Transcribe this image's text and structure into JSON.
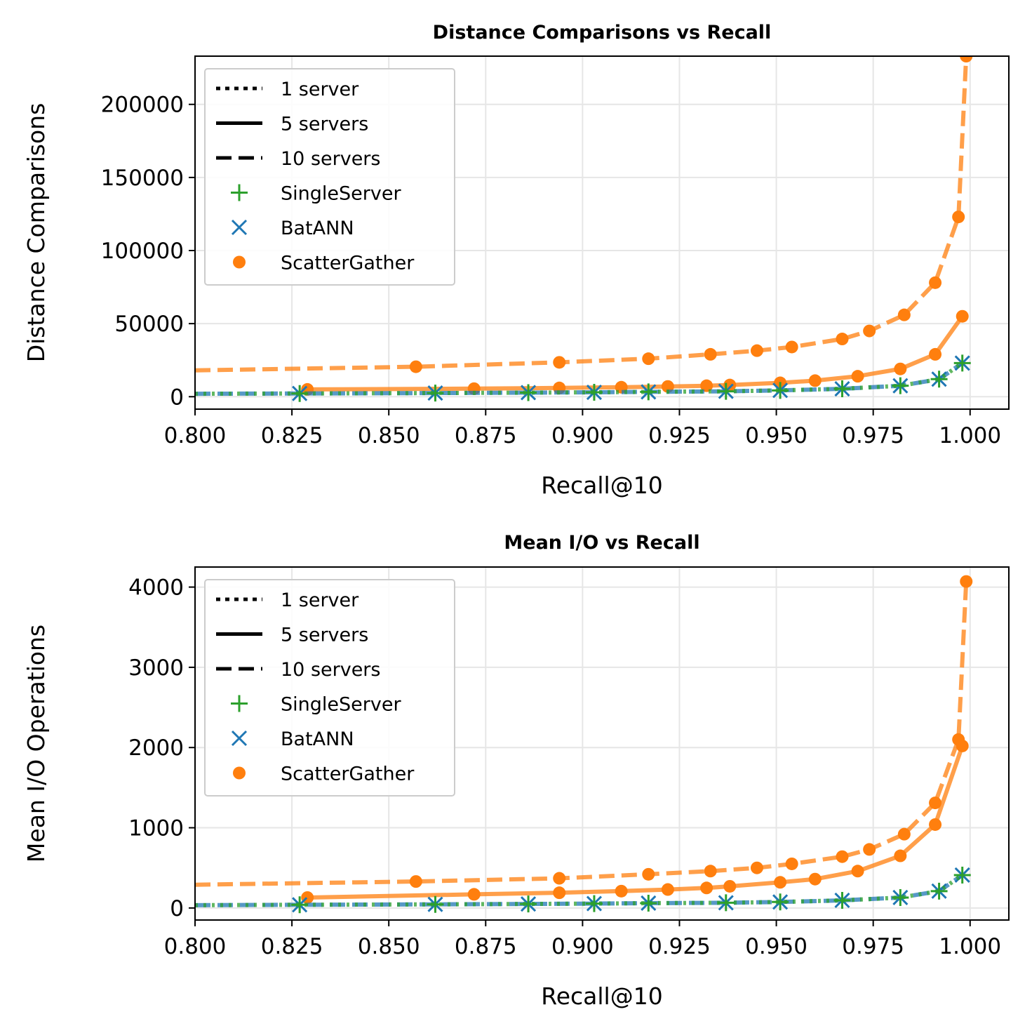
{
  "colors": {
    "SingleServer": "#2ca02c",
    "BatANN": "#1f77b4",
    "ScatterGather": "#ff7f0e"
  },
  "legend_entries": [
    {
      "label": "1 server",
      "kind": "line",
      "style": "dotted"
    },
    {
      "label": "5 servers",
      "kind": "line",
      "style": "solid"
    },
    {
      "label": "10 servers",
      "kind": "line",
      "style": "dashed"
    },
    {
      "label": "SingleServer",
      "kind": "marker",
      "marker": "plus"
    },
    {
      "label": "BatANN",
      "kind": "marker",
      "marker": "x"
    },
    {
      "label": "ScatterGather",
      "kind": "marker",
      "marker": "dot"
    }
  ],
  "chart_data": [
    {
      "type": "line",
      "title": "Distance Comparisons vs Recall",
      "xlabel": "Recall@10",
      "ylabel": "Distance Comparisons",
      "xlim": [
        0.8,
        1.01
      ],
      "ylim": [
        -8500,
        233000
      ],
      "xticks": [
        "0.800",
        "0.825",
        "0.850",
        "0.875",
        "0.900",
        "0.925",
        "0.950",
        "0.975",
        "1.000"
      ],
      "yticks": [
        "0",
        "50000",
        "100000",
        "150000",
        "200000"
      ],
      "grid": true,
      "legend": "top-left",
      "series": [
        {
          "name": "ScatterGather",
          "servers": "10 servers",
          "style": "dashed",
          "marker": "dot",
          "x": [
            0.8,
            0.857,
            0.894,
            0.917,
            0.933,
            0.945,
            0.954,
            0.967,
            0.974,
            0.983,
            0.991,
            0.997,
            0.999
          ],
          "y": [
            18000,
            20500,
            23500,
            26000,
            29000,
            31500,
            34000,
            39500,
            45000,
            56000,
            78000,
            123000,
            233000
          ]
        },
        {
          "name": "ScatterGather",
          "servers": "5 servers",
          "style": "solid",
          "marker": "dot",
          "x": [
            0.829,
            0.872,
            0.894,
            0.91,
            0.922,
            0.932,
            0.938,
            0.951,
            0.96,
            0.971,
            0.982,
            0.991,
            0.998
          ],
          "y": [
            5000,
            5500,
            6000,
            6500,
            7000,
            7500,
            8000,
            9500,
            11000,
            14000,
            19000,
            29000,
            55000
          ]
        },
        {
          "name": "BatANN",
          "servers": "10 servers",
          "style": "dashed",
          "marker": "x",
          "x": [
            0.8,
            0.827,
            0.862,
            0.886,
            0.903,
            0.917,
            0.937,
            0.951,
            0.967,
            0.982,
            0.992,
            0.998
          ],
          "y": [
            2000,
            2200,
            2500,
            2800,
            3000,
            3300,
            3700,
            4300,
            5400,
            7500,
            12000,
            23000
          ]
        },
        {
          "name": "SingleServer",
          "servers": "1 server",
          "style": "dotted",
          "marker": "plus",
          "x": [
            0.8,
            0.827,
            0.862,
            0.886,
            0.903,
            0.917,
            0.937,
            0.951,
            0.967,
            0.982,
            0.992,
            0.998
          ],
          "y": [
            2000,
            2200,
            2500,
            2800,
            3000,
            3300,
            3700,
            4300,
            5400,
            7500,
            12000,
            23000
          ]
        }
      ]
    },
    {
      "type": "line",
      "title": "Mean I/O vs Recall",
      "xlabel": "Recall@10",
      "ylabel": "Mean I/O Operations",
      "xlim": [
        0.8,
        1.01
      ],
      "ylim": [
        -150,
        4250
      ],
      "xticks": [
        "0.800",
        "0.825",
        "0.850",
        "0.875",
        "0.900",
        "0.925",
        "0.950",
        "0.975",
        "1.000"
      ],
      "yticks": [
        "0",
        "1000",
        "2000",
        "3000",
        "4000"
      ],
      "grid": true,
      "legend": "top-left",
      "series": [
        {
          "name": "ScatterGather",
          "servers": "10 servers",
          "style": "dashed",
          "marker": "dot",
          "x": [
            0.8,
            0.857,
            0.894,
            0.917,
            0.933,
            0.945,
            0.954,
            0.967,
            0.974,
            0.983,
            0.991,
            0.997,
            0.999
          ],
          "y": [
            290,
            330,
            370,
            420,
            460,
            500,
            550,
            640,
            730,
            920,
            1310,
            2100,
            4070
          ]
        },
        {
          "name": "ScatterGather",
          "servers": "5 servers",
          "style": "solid",
          "marker": "dot",
          "x": [
            0.829,
            0.872,
            0.894,
            0.91,
            0.922,
            0.932,
            0.938,
            0.951,
            0.96,
            0.971,
            0.982,
            0.991,
            0.998
          ],
          "y": [
            130,
            170,
            190,
            210,
            230,
            250,
            270,
            320,
            360,
            460,
            650,
            1040,
            2020
          ]
        },
        {
          "name": "BatANN",
          "servers": "10 servers",
          "style": "dashed",
          "marker": "x",
          "x": [
            0.8,
            0.827,
            0.862,
            0.886,
            0.903,
            0.917,
            0.937,
            0.951,
            0.967,
            0.982,
            0.992,
            0.998
          ],
          "y": [
            35,
            40,
            45,
            50,
            55,
            60,
            65,
            75,
            95,
            130,
            210,
            410
          ]
        },
        {
          "name": "SingleServer",
          "servers": "1 server",
          "style": "dotted",
          "marker": "plus",
          "x": [
            0.8,
            0.827,
            0.862,
            0.886,
            0.903,
            0.917,
            0.937,
            0.951,
            0.967,
            0.982,
            0.992,
            0.998
          ],
          "y": [
            35,
            40,
            45,
            50,
            55,
            60,
            65,
            75,
            95,
            130,
            210,
            410
          ]
        }
      ]
    }
  ]
}
